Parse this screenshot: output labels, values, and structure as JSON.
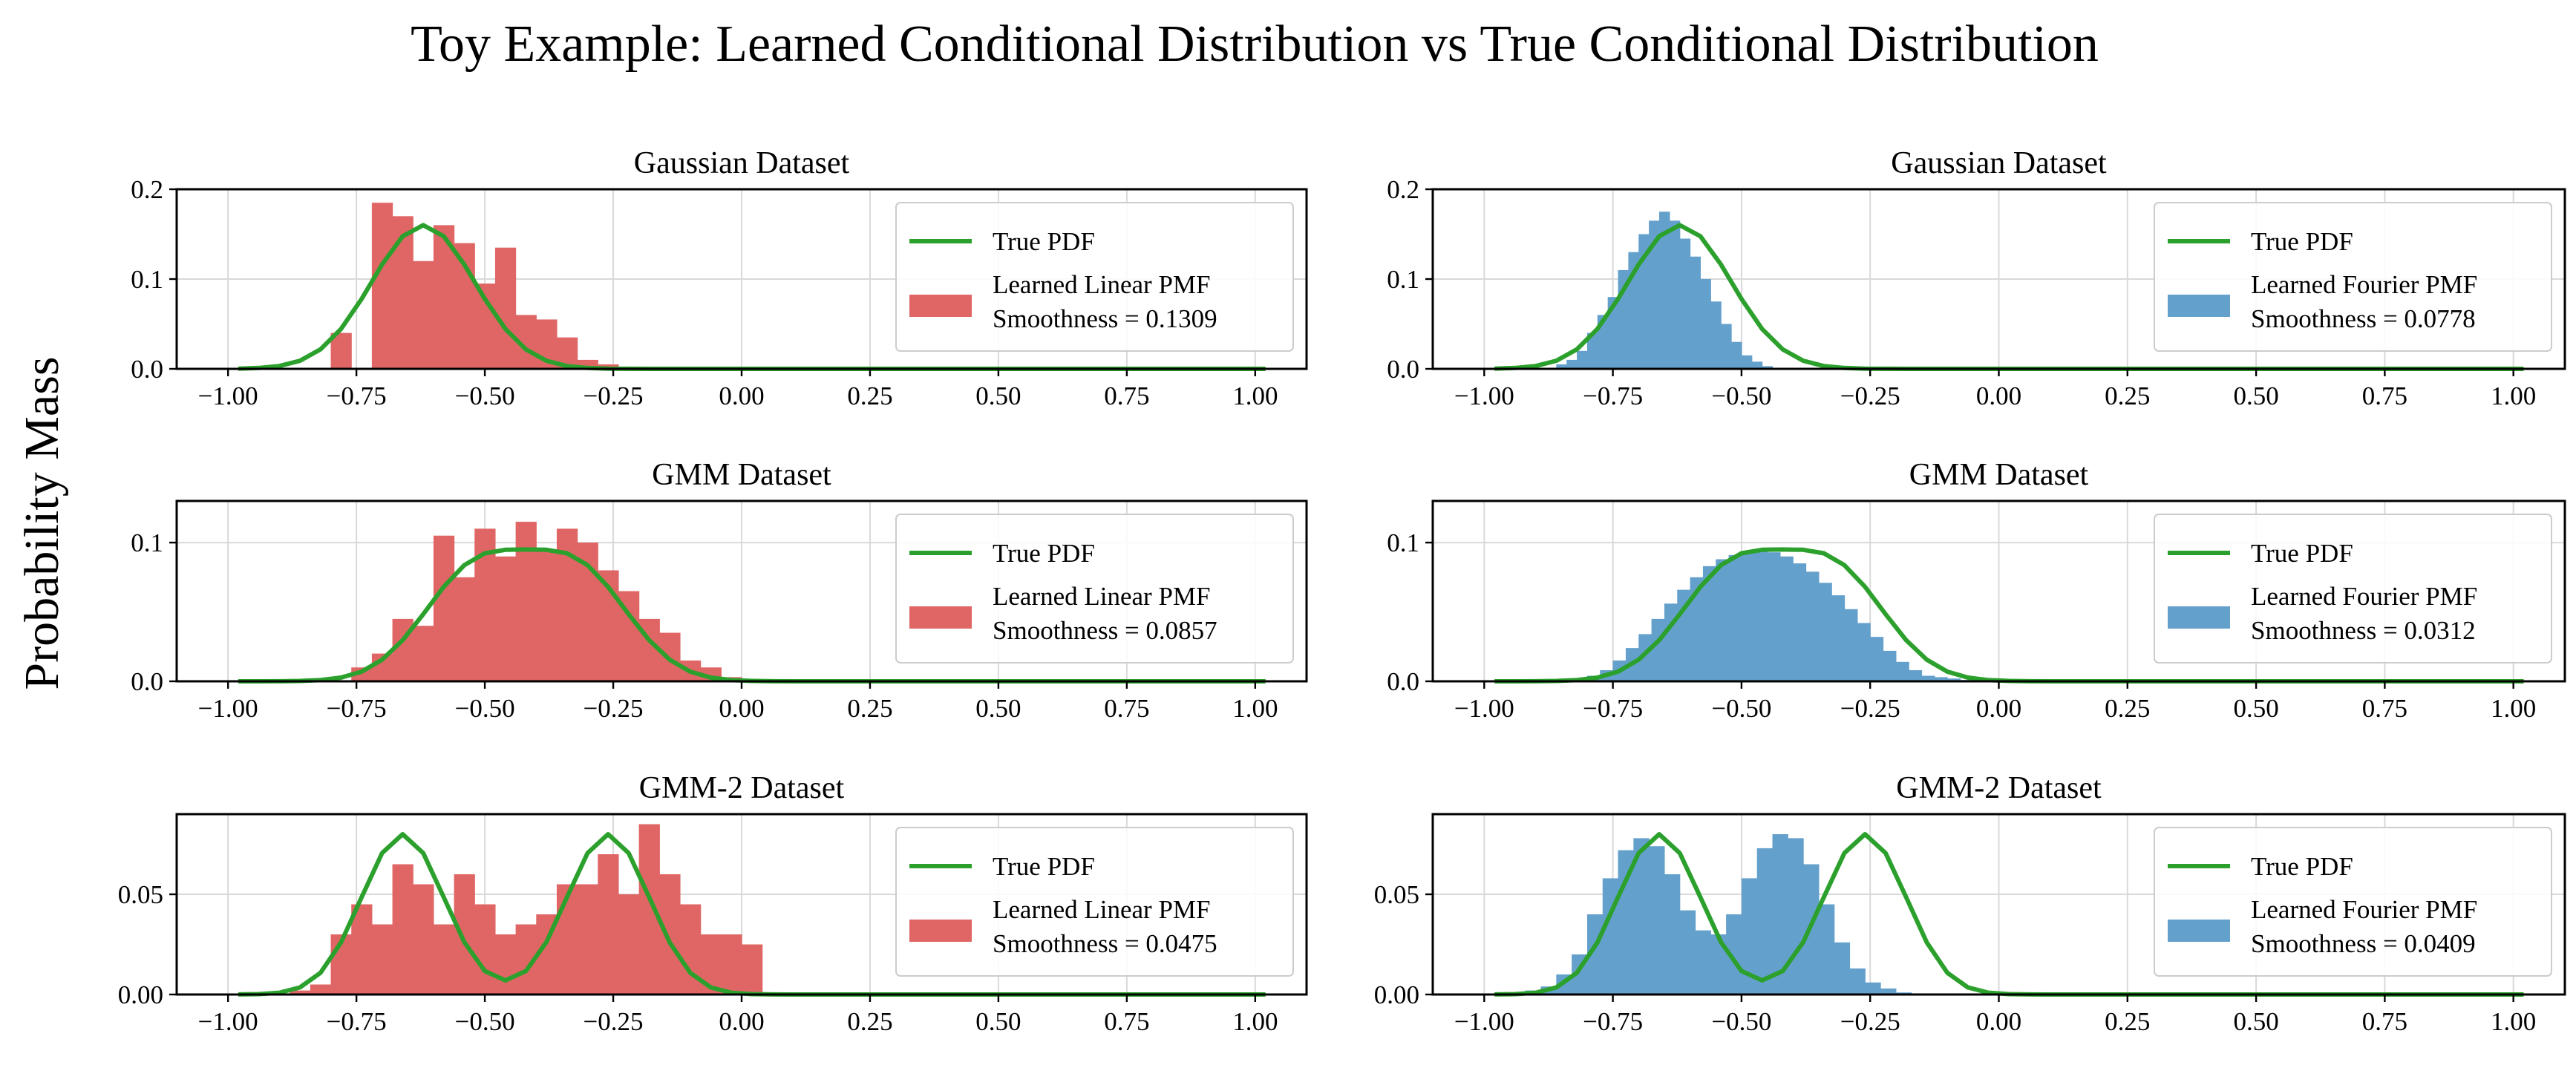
{
  "figure": {
    "title": "Toy Example: Learned Conditional Distribution vs True Conditional Distribution",
    "ylabel": "Probability Mass"
  },
  "colors": {
    "linear": "#e06666",
    "fourier": "#64a0cc",
    "true_pdf": "#2ca02c"
  },
  "chart_data": [
    {
      "type": "bar",
      "panel": "linear-gaussian",
      "title": "Gaussian Dataset",
      "model": "linear",
      "xlim": [
        -1.1,
        1.1
      ],
      "ylim": [
        0,
        0.2
      ],
      "xticks": [
        -1,
        -0.75,
        -0.5,
        -0.25,
        0,
        0.25,
        0.5,
        0.75,
        1
      ],
      "xtick_labels": [
        "−1.00",
        "−0.75",
        "−0.50",
        "−0.25",
        "0.00",
        "0.25",
        "0.50",
        "0.75",
        "1.00"
      ],
      "yticks": [
        0,
        0.1,
        0.2
      ],
      "ytick_labels": [
        "0.0",
        "0.1",
        "0.2"
      ],
      "legend": {
        "true_label": "True PDF",
        "learned_label": "Learned Linear PMF",
        "smoothness_label": "Smoothness = 0.1309",
        "position": "upper right"
      },
      "true_pdf": {
        "mu": [
          -0.62
        ],
        "sigma": [
          0.1
        ],
        "weight": [
          1
        ],
        "scale": 0.16
      },
      "bins": {
        "start": -0.8,
        "width": 0.04,
        "values": [
          0.04,
          0.0,
          0.185,
          0.17,
          0.12,
          0.16,
          0.14,
          0.095,
          0.135,
          0.06,
          0.055,
          0.035,
          0.01,
          0.005
        ]
      }
    },
    {
      "type": "bar",
      "panel": "fourier-gaussian",
      "title": "Gaussian Dataset",
      "model": "fourier",
      "xlim": [
        -1.1,
        1.1
      ],
      "ylim": [
        0,
        0.2
      ],
      "xticks": [
        -1,
        -0.75,
        -0.5,
        -0.25,
        0,
        0.25,
        0.5,
        0.75,
        1
      ],
      "xtick_labels": [
        "−1.00",
        "−0.75",
        "−0.50",
        "−0.25",
        "0.00",
        "0.25",
        "0.50",
        "0.75",
        "1.00"
      ],
      "yticks": [
        0,
        0.1,
        0.2
      ],
      "ytick_labels": [
        "0.0",
        "0.1",
        "0.2"
      ],
      "legend": {
        "true_label": "True PDF",
        "learned_label": "Learned Fourier PMF",
        "smoothness_label": "Smoothness = 0.0778",
        "position": "upper right"
      },
      "true_pdf": {
        "mu": [
          -0.62
        ],
        "sigma": [
          0.1
        ],
        "weight": [
          1
        ],
        "scale": 0.16
      },
      "bins": {
        "start": -0.86,
        "width": 0.02,
        "values": [
          0.005,
          0.01,
          0.02,
          0.04,
          0.06,
          0.08,
          0.11,
          0.13,
          0.15,
          0.165,
          0.175,
          0.165,
          0.145,
          0.125,
          0.1,
          0.075,
          0.05,
          0.03,
          0.015,
          0.008,
          0.003
        ]
      }
    },
    {
      "type": "bar",
      "panel": "linear-gmm",
      "title": "GMM Dataset",
      "model": "linear",
      "xlim": [
        -1.1,
        1.1
      ],
      "ylim": [
        0,
        0.13
      ],
      "xticks": [
        -1,
        -0.75,
        -0.5,
        -0.25,
        0,
        0.25,
        0.5,
        0.75,
        1
      ],
      "xtick_labels": [
        "−1.00",
        "−0.75",
        "−0.50",
        "−0.25",
        "0.00",
        "0.25",
        "0.50",
        "0.75",
        "1.00"
      ],
      "yticks": [
        0,
        0.1
      ],
      "ytick_labels": [
        "0.0",
        "0.1"
      ],
      "legend": {
        "true_label": "True PDF",
        "learned_label": "Learned Linear PMF",
        "smoothness_label": "Smoothness = 0.0857",
        "position": "upper right"
      },
      "true_pdf": {
        "mu": [
          -0.52,
          -0.32
        ],
        "sigma": [
          0.1,
          0.1
        ],
        "weight": [
          0.5,
          0.5
        ],
        "scale": 0.095
      },
      "bins": {
        "start": -0.76,
        "width": 0.04,
        "values": [
          0.01,
          0.02,
          0.045,
          0.04,
          0.105,
          0.075,
          0.11,
          0.09,
          0.115,
          0.095,
          0.11,
          0.1,
          0.08,
          0.065,
          0.045,
          0.035,
          0.015,
          0.01,
          0.003
        ]
      }
    },
    {
      "type": "bar",
      "panel": "fourier-gmm",
      "title": "GMM Dataset",
      "model": "fourier",
      "xlim": [
        -1.1,
        1.1
      ],
      "ylim": [
        0,
        0.13
      ],
      "xticks": [
        -1,
        -0.75,
        -0.5,
        -0.25,
        0,
        0.25,
        0.5,
        0.75,
        1
      ],
      "xtick_labels": [
        "−1.00",
        "−0.75",
        "−0.50",
        "−0.25",
        "0.00",
        "0.25",
        "0.50",
        "0.75",
        "1.00"
      ],
      "yticks": [
        0,
        0.1
      ],
      "ytick_labels": [
        "0.0",
        "0.1"
      ],
      "legend": {
        "true_label": "True PDF",
        "learned_label": "Learned Fourier PMF",
        "smoothness_label": "Smoothness = 0.0312",
        "position": "upper right"
      },
      "true_pdf": {
        "mu": [
          -0.52,
          -0.32
        ],
        "sigma": [
          0.1,
          0.1
        ],
        "weight": [
          0.5,
          0.5
        ],
        "scale": 0.095
      },
      "bins": {
        "start": -0.8,
        "width": 0.025,
        "values": [
          0.004,
          0.008,
          0.015,
          0.024,
          0.034,
          0.045,
          0.056,
          0.066,
          0.075,
          0.083,
          0.088,
          0.091,
          0.093,
          0.094,
          0.093,
          0.09,
          0.085,
          0.079,
          0.071,
          0.062,
          0.052,
          0.042,
          0.032,
          0.022,
          0.014,
          0.008,
          0.004,
          0.003,
          0.002,
          0.001,
          0.001,
          0.0005
        ]
      }
    },
    {
      "type": "bar",
      "panel": "linear-gmm2",
      "title": "GMM-2 Dataset",
      "model": "linear",
      "xlim": [
        -1.1,
        1.1
      ],
      "ylim": [
        0,
        0.09
      ],
      "xticks": [
        -1,
        -0.75,
        -0.5,
        -0.25,
        0,
        0.25,
        0.5,
        0.75,
        1
      ],
      "xtick_labels": [
        "−1.00",
        "−0.75",
        "−0.50",
        "−0.25",
        "0.00",
        "0.25",
        "0.50",
        "0.75",
        "1.00"
      ],
      "yticks": [
        0,
        0.05
      ],
      "ytick_labels": [
        "0.00",
        "0.05"
      ],
      "legend": {
        "true_label": "True PDF",
        "learned_label": "Learned Linear PMF",
        "smoothness_label": "Smoothness = 0.0475",
        "position": "upper right"
      },
      "true_pdf": {
        "mu": [
          -0.66,
          -0.26
        ],
        "sigma": [
          0.08,
          0.08
        ],
        "weight": [
          0.5,
          0.5
        ],
        "scale": 0.08
      },
      "bins": {
        "start": -0.88,
        "width": 0.04,
        "values": [
          0.002,
          0.005,
          0.03,
          0.045,
          0.035,
          0.065,
          0.055,
          0.035,
          0.06,
          0.045,
          0.03,
          0.035,
          0.04,
          0.055,
          0.055,
          0.07,
          0.05,
          0.085,
          0.06,
          0.045,
          0.03,
          0.03,
          0.025
        ]
      }
    },
    {
      "type": "bar",
      "panel": "fourier-gmm2",
      "title": "GMM-2 Dataset",
      "model": "fourier",
      "xlim": [
        -1.1,
        1.1
      ],
      "ylim": [
        0,
        0.09
      ],
      "xticks": [
        -1,
        -0.75,
        -0.5,
        -0.25,
        0,
        0.25,
        0.5,
        0.75,
        1
      ],
      "xtick_labels": [
        "−1.00",
        "−0.75",
        "−0.50",
        "−0.25",
        "0.00",
        "0.25",
        "0.50",
        "0.75",
        "1.00"
      ],
      "yticks": [
        0,
        0.05
      ],
      "ytick_labels": [
        "0.00",
        "0.05"
      ],
      "legend": {
        "true_label": "True PDF",
        "learned_label": "Learned Fourier PMF",
        "smoothness_label": "Smoothness = 0.0409",
        "position": "upper right"
      },
      "true_pdf": {
        "mu": [
          -0.66,
          -0.26
        ],
        "sigma": [
          0.08,
          0.08
        ],
        "weight": [
          0.5,
          0.5
        ],
        "scale": 0.08
      },
      "bins": {
        "start": -0.92,
        "width": 0.03,
        "values": [
          0.002,
          0.004,
          0.01,
          0.02,
          0.04,
          0.058,
          0.072,
          0.078,
          0.074,
          0.06,
          0.042,
          0.032,
          0.03,
          0.04,
          0.058,
          0.073,
          0.08,
          0.078,
          0.065,
          0.045,
          0.026,
          0.013,
          0.006,
          0.003,
          0.001
        ]
      }
    }
  ]
}
